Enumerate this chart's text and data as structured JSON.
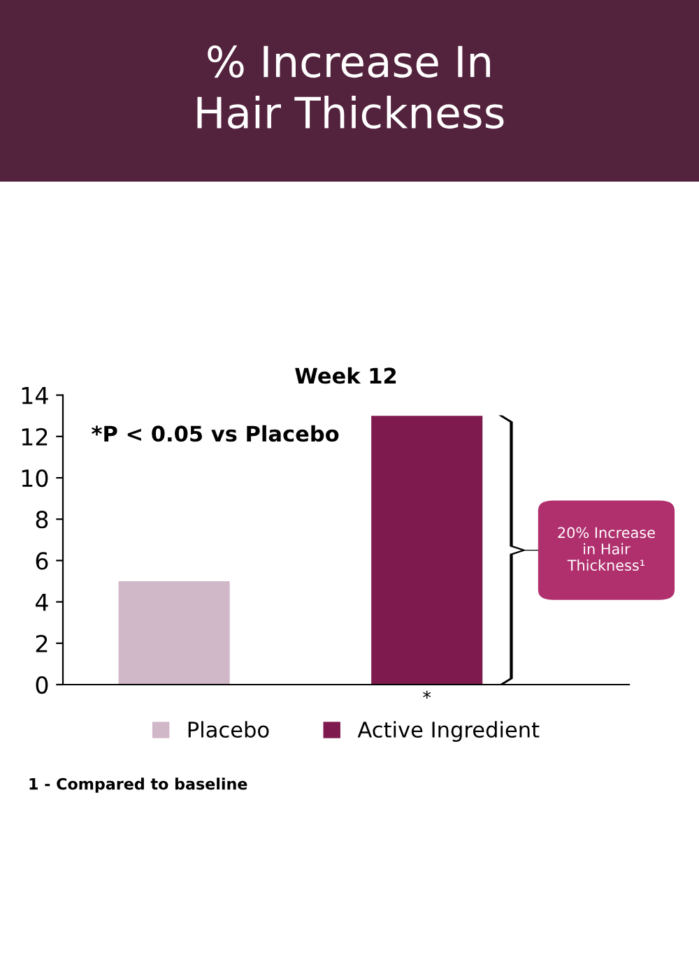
{
  "chart_data": {
    "type": "bar",
    "title": "% Increase In\nHair Thickness",
    "subtitle": "Week 12",
    "categories": [
      null,
      null
    ],
    "series": [
      {
        "name": "Placebo",
        "color": "#d1b8c8",
        "values": [
          5,
          null
        ]
      },
      {
        "name": "Active Ingredient",
        "color": "#7e1a4e",
        "values": [
          null,
          13
        ]
      }
    ],
    "ylim": [
      0,
      14
    ],
    "yticks": [
      0,
      2,
      4,
      6,
      8,
      10,
      12,
      14
    ],
    "grid": false,
    "legend": "bottom",
    "annotations": [
      "*P < 0.05 vs Placebo",
      "*",
      "20% Increase\nin Hair\nThickness¹",
      "1 - Compared to baseline"
    ]
  }
}
